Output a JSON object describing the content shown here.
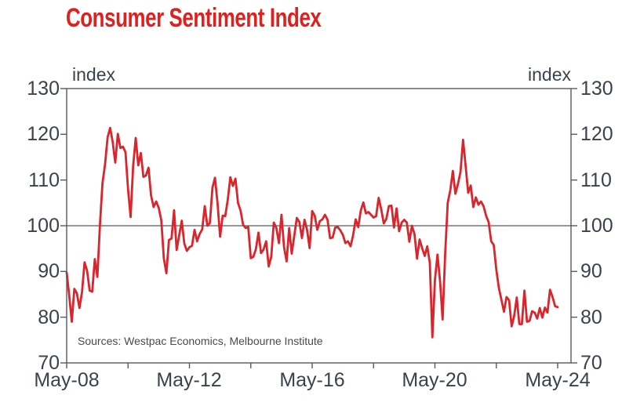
{
  "title": "Consumer Sentiment Index",
  "source_note": "Sources: Westpac Economics, Melbourne Institute",
  "unit_label_left": "index",
  "unit_label_right": "index",
  "colors": {
    "title_red": "#e0201e",
    "line_red": "#d9252b",
    "axis_gray": "#58595b",
    "label_text": "#3a424d",
    "source_text": "#4a4a4a"
  },
  "chart_data": {
    "type": "line",
    "title": "Consumer Sentiment Index",
    "xlabel": "",
    "ylabel": "index",
    "ylim": [
      70,
      130
    ],
    "y_ticks": [
      130,
      120,
      110,
      100,
      90,
      80,
      70
    ],
    "x_tick_labels": [
      "May-08",
      "May-12",
      "May-16",
      "May-20",
      "May-24"
    ],
    "x_minor_tick_interval_months": 24,
    "reference_line": 100,
    "grid": "single horizontal reference line at 100",
    "legend_position": "none",
    "frequency": "monthly",
    "start_month": "May-2008",
    "end_month": "May-2024",
    "series": [
      {
        "name": "Consumer Sentiment Index",
        "values": [
          89.8,
          84.7,
          79.0,
          86.2,
          85.2,
          82.0,
          85.5,
          92.0,
          90.1,
          85.8,
          85.6,
          92.7,
          88.8,
          100.1,
          109.3,
          113.4,
          119.3,
          121.4,
          118.3,
          113.8,
          120.1,
          117.0,
          117.3,
          116.1,
          108.0,
          101.9,
          113.1,
          119.2,
          113.2,
          115.9,
          110.7,
          111.0,
          112.7,
          106.6,
          104.1,
          105.3,
          103.9,
          101.2,
          92.8,
          89.6,
          96.9,
          97.2,
          103.4,
          94.7,
          97.9,
          101.1,
          96.1,
          94.5,
          95.3,
          95.6,
          99.1,
          96.6,
          98.2,
          99.2,
          104.3,
          100.0,
          100.6,
          108.3,
          110.5,
          104.9,
          97.6,
          102.2,
          102.1,
          105.7,
          110.6,
          108.7,
          110.3,
          105.0,
          103.3,
          100.2,
          99.5,
          99.7,
          92.9,
          93.2,
          94.9,
          98.5,
          94.0,
          94.8,
          96.6,
          91.1,
          93.2,
          100.7,
          99.5,
          96.2,
          102.4,
          95.3,
          92.2,
          99.5,
          93.9,
          97.8,
          101.7,
          100.8,
          97.3,
          101.3,
          99.1,
          95.1,
          103.2,
          102.2,
          99.1,
          101.0,
          101.4,
          102.4,
          101.3,
          97.3,
          97.4,
          99.6,
          99.7,
          99.0,
          98.0,
          96.2,
          96.6,
          95.5,
          97.9,
          101.4,
          99.7,
          103.3,
          105.1,
          102.7,
          103.0,
          102.4,
          101.8,
          102.1,
          106.1,
          103.6,
          100.5,
          101.5,
          104.3,
          104.4,
          99.6,
          103.8,
          98.8,
          100.7,
          101.3,
          100.7,
          96.5,
          100.0,
          98.2,
          92.8,
          97.0,
          95.1,
          93.4,
          95.5,
          91.9,
          75.6,
          88.1,
          93.7,
          87.9,
          79.5,
          93.8,
          105.0,
          107.7,
          112.0,
          107.0,
          109.1,
          111.8,
          118.8,
          113.1,
          107.2,
          108.8,
          104.1,
          106.2,
          104.6,
          105.3,
          104.3,
          102.2,
          100.8,
          96.6,
          95.8,
          90.4,
          86.4,
          83.8,
          81.2,
          84.4,
          83.7,
          78.0,
          80.3,
          84.3,
          78.5,
          78.5,
          85.8,
          79.0,
          79.2,
          81.3,
          81.0,
          79.7,
          82.0,
          79.9,
          82.1,
          81.0,
          86.0,
          84.4,
          82.4,
          82.2
        ]
      }
    ]
  }
}
